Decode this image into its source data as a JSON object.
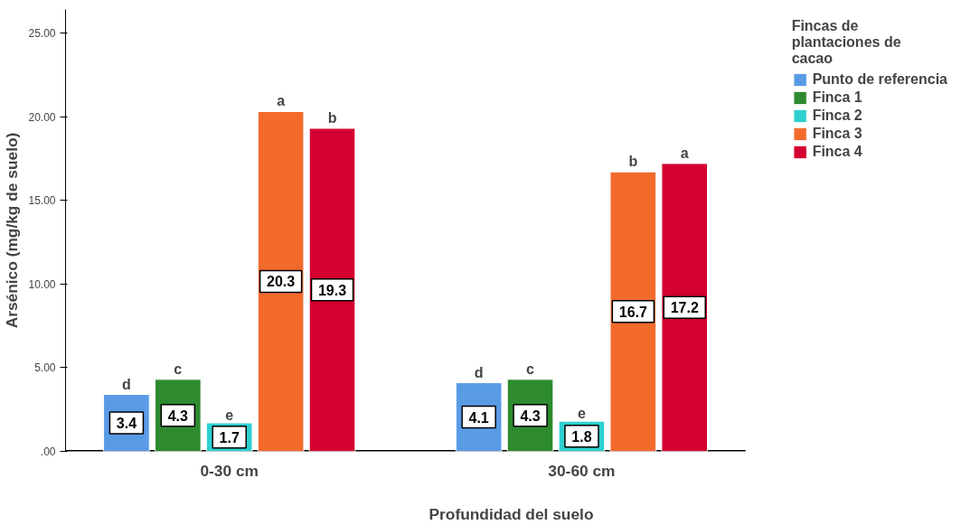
{
  "chart_data": {
    "type": "bar",
    "xlabel": "Profundidad del suelo",
    "ylabel": "Arsénico (mg/kg de suelo)",
    "legend_title": "Fincas de plantaciones de cacao",
    "categories": [
      "0-30 cm",
      "30-60 cm"
    ],
    "series": [
      {
        "name": "Punto de referencia",
        "color": "#5a9be6",
        "values": [
          3.4,
          4.1
        ]
      },
      {
        "name": "Finca 1",
        "color": "#2e8a2e",
        "values": [
          4.3,
          4.3
        ]
      },
      {
        "name": "Finca 2",
        "color": "#2ecfcf",
        "values": [
          1.7,
          1.8
        ]
      },
      {
        "name": "Finca 3",
        "color": "#f26a2c",
        "values": [
          20.3,
          16.7
        ]
      },
      {
        "name": "Finca 4",
        "color": "#d40032",
        "values": [
          19.3,
          17.2
        ]
      }
    ],
    "ylim": [
      0,
      26.4
    ],
    "yticks": [
      {
        "value": 0,
        "label": ".00"
      },
      {
        "value": 5,
        "label": "5.00"
      },
      {
        "value": 10,
        "label": "10.00"
      },
      {
        "value": 15,
        "label": "15.00"
      },
      {
        "value": 20,
        "label": "20.00"
      },
      {
        "value": 25,
        "label": "25.00"
      }
    ],
    "data_labels": true,
    "grid": false,
    "legend": "top right",
    "annotations": [
      "d",
      "c",
      "e",
      "a",
      "b",
      "d",
      "c",
      "e",
      "b",
      "a"
    ]
  }
}
